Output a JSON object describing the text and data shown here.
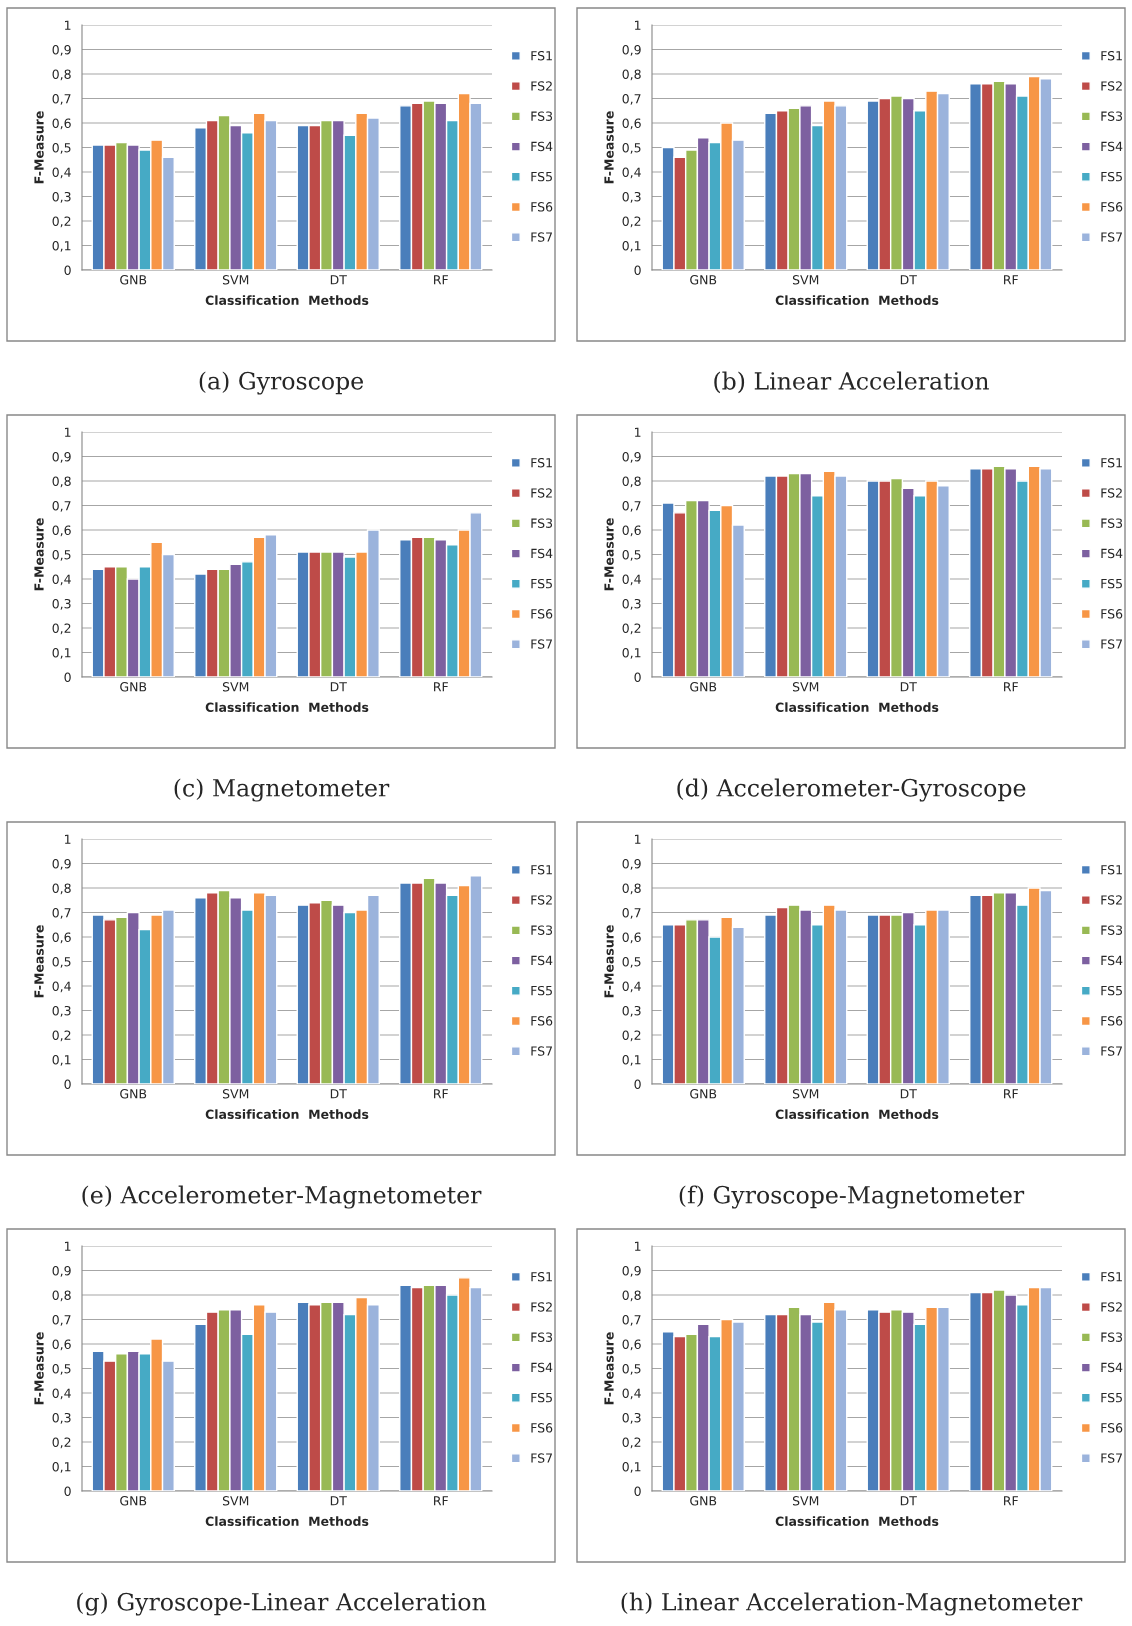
{
  "chart_data": [
    {
      "type": "bar",
      "title": "(a) Gyroscope",
      "xlabel": "Classification  Methods",
      "ylabel": "F-Measure",
      "categories": [
        "GNB",
        "SVM",
        "DT",
        "RF"
      ],
      "grid": "y",
      "legend": "right",
      "ylim": [
        0,
        1
      ],
      "yticks": [
        0,
        {
          "value": 0.1,
          "label": "0,1"
        },
        {
          "value": 0.2,
          "label": "0,2"
        },
        {
          "value": 0.3,
          "label": "0,3"
        },
        {
          "value": 0.4,
          "label": "0,4"
        },
        {
          "value": 0.5,
          "label": "0,5"
        },
        {
          "value": 0.6,
          "label": "0,6"
        },
        {
          "value": 0.7,
          "label": "0,7"
        },
        {
          "value": 0.8,
          "label": "0,8"
        },
        {
          "value": 0.9,
          "label": "0,9"
        },
        1
      ],
      "series": [
        {
          "name": "FS1",
          "color": "#4a7ebb",
          "values": [
            0.51,
            0.58,
            0.59,
            0.67
          ]
        },
        {
          "name": "FS2",
          "color": "#be4b48",
          "values": [
            0.51,
            0.61,
            0.59,
            0.68
          ]
        },
        {
          "name": "FS3",
          "color": "#98b954",
          "values": [
            0.52,
            0.63,
            0.61,
            0.69
          ]
        },
        {
          "name": "FS4",
          "color": "#7d60a0",
          "values": [
            0.51,
            0.59,
            0.61,
            0.68
          ]
        },
        {
          "name": "FS5",
          "color": "#46aac5",
          "values": [
            0.49,
            0.56,
            0.55,
            0.61
          ]
        },
        {
          "name": "FS6",
          "color": "#f79646",
          "values": [
            0.53,
            0.64,
            0.64,
            0.72
          ]
        },
        {
          "name": "FS7",
          "color": "#9bb3dc",
          "values": [
            0.46,
            0.61,
            0.62,
            0.68
          ]
        }
      ]
    },
    {
      "type": "bar",
      "title": "(b) Linear Acceleration",
      "xlabel": "Classification  Methods",
      "ylabel": "F-Measure",
      "categories": [
        "GNB",
        "SVM",
        "DT",
        "RF"
      ],
      "grid": "y",
      "legend": "right",
      "ylim": [
        0,
        1
      ],
      "yticks": [
        0,
        {
          "value": 0.1,
          "label": "0,1"
        },
        {
          "value": 0.2,
          "label": "0,2"
        },
        {
          "value": 0.3,
          "label": "0,3"
        },
        {
          "value": 0.4,
          "label": "0,4"
        },
        {
          "value": 0.5,
          "label": "0,5"
        },
        {
          "value": 0.6,
          "label": "0,6"
        },
        {
          "value": 0.7,
          "label": "0,7"
        },
        {
          "value": 0.8,
          "label": "0,8"
        },
        {
          "value": 0.9,
          "label": "0,9"
        },
        1
      ],
      "series": [
        {
          "name": "FS1",
          "color": "#4a7ebb",
          "values": [
            0.5,
            0.64,
            0.69,
            0.76
          ]
        },
        {
          "name": "FS2",
          "color": "#be4b48",
          "values": [
            0.46,
            0.65,
            0.7,
            0.76
          ]
        },
        {
          "name": "FS3",
          "color": "#98b954",
          "values": [
            0.49,
            0.66,
            0.71,
            0.77
          ]
        },
        {
          "name": "FS4",
          "color": "#7d60a0",
          "values": [
            0.54,
            0.67,
            0.7,
            0.76
          ]
        },
        {
          "name": "FS5",
          "color": "#46aac5",
          "values": [
            0.52,
            0.59,
            0.65,
            0.71
          ]
        },
        {
          "name": "FS6",
          "color": "#f79646",
          "values": [
            0.6,
            0.69,
            0.73,
            0.79
          ]
        },
        {
          "name": "FS7",
          "color": "#9bb3dc",
          "values": [
            0.53,
            0.67,
            0.72,
            0.78
          ]
        }
      ]
    },
    {
      "type": "bar",
      "title": "(c) Magnetometer",
      "xlabel": "Classification  Methods",
      "ylabel": "F-Measure",
      "categories": [
        "GNB",
        "SVM",
        "DT",
        "RF"
      ],
      "grid": "y",
      "legend": "right",
      "ylim": [
        0,
        1
      ],
      "yticks": [
        0,
        {
          "value": 0.1,
          "label": "0,1"
        },
        {
          "value": 0.2,
          "label": "0,2"
        },
        {
          "value": 0.3,
          "label": "0,3"
        },
        {
          "value": 0.4,
          "label": "0,4"
        },
        {
          "value": 0.5,
          "label": "0,5"
        },
        {
          "value": 0.6,
          "label": "0,6"
        },
        {
          "value": 0.7,
          "label": "0,7"
        },
        {
          "value": 0.8,
          "label": "0,8"
        },
        {
          "value": 0.9,
          "label": "0,9"
        },
        1
      ],
      "series": [
        {
          "name": "FS1",
          "color": "#4a7ebb",
          "values": [
            0.44,
            0.42,
            0.51,
            0.56
          ]
        },
        {
          "name": "FS2",
          "color": "#be4b48",
          "values": [
            0.45,
            0.44,
            0.51,
            0.57
          ]
        },
        {
          "name": "FS3",
          "color": "#98b954",
          "values": [
            0.45,
            0.44,
            0.51,
            0.57
          ]
        },
        {
          "name": "FS4",
          "color": "#7d60a0",
          "values": [
            0.4,
            0.46,
            0.51,
            0.56
          ]
        },
        {
          "name": "FS5",
          "color": "#46aac5",
          "values": [
            0.45,
            0.47,
            0.49,
            0.54
          ]
        },
        {
          "name": "FS6",
          "color": "#f79646",
          "values": [
            0.55,
            0.57,
            0.51,
            0.6
          ]
        },
        {
          "name": "FS7",
          "color": "#9bb3dc",
          "values": [
            0.5,
            0.58,
            0.6,
            0.67
          ]
        }
      ]
    },
    {
      "type": "bar",
      "title": "(d) Accelerometer-Gyroscope",
      "xlabel": "Classification  Methods",
      "ylabel": "F-Measure",
      "categories": [
        "GNB",
        "SVM",
        "DT",
        "RF"
      ],
      "grid": "y",
      "legend": "right",
      "ylim": [
        0,
        1
      ],
      "yticks": [
        0,
        {
          "value": 0.1,
          "label": "0,1"
        },
        {
          "value": 0.2,
          "label": "0,2"
        },
        {
          "value": 0.3,
          "label": "0,3"
        },
        {
          "value": 0.4,
          "label": "0,4"
        },
        {
          "value": 0.5,
          "label": "0,5"
        },
        {
          "value": 0.6,
          "label": "0,6"
        },
        {
          "value": 0.7,
          "label": "0,7"
        },
        {
          "value": 0.8,
          "label": "0,8"
        },
        {
          "value": 0.9,
          "label": "0,9"
        },
        1
      ],
      "series": [
        {
          "name": "FS1",
          "color": "#4a7ebb",
          "values": [
            0.71,
            0.82,
            0.8,
            0.85
          ]
        },
        {
          "name": "FS2",
          "color": "#be4b48",
          "values": [
            0.67,
            0.82,
            0.8,
            0.85
          ]
        },
        {
          "name": "FS3",
          "color": "#98b954",
          "values": [
            0.72,
            0.83,
            0.81,
            0.86
          ]
        },
        {
          "name": "FS4",
          "color": "#7d60a0",
          "values": [
            0.72,
            0.83,
            0.77,
            0.85
          ]
        },
        {
          "name": "FS5",
          "color": "#46aac5",
          "values": [
            0.68,
            0.74,
            0.74,
            0.8
          ]
        },
        {
          "name": "FS6",
          "color": "#f79646",
          "values": [
            0.7,
            0.84,
            0.8,
            0.86
          ]
        },
        {
          "name": "FS7",
          "color": "#9bb3dc",
          "values": [
            0.62,
            0.82,
            0.78,
            0.85
          ]
        }
      ]
    },
    {
      "type": "bar",
      "title": "(e) Accelerometer-Magnetometer",
      "xlabel": "Classification  Methods",
      "ylabel": "F-Measure",
      "categories": [
        "GNB",
        "SVM",
        "DT",
        "RF"
      ],
      "grid": "y",
      "legend": "right",
      "ylim": [
        0,
        1
      ],
      "yticks": [
        0,
        {
          "value": 0.1,
          "label": "0,1"
        },
        {
          "value": 0.2,
          "label": "0,2"
        },
        {
          "value": 0.3,
          "label": "0,3"
        },
        {
          "value": 0.4,
          "label": "0,4"
        },
        {
          "value": 0.5,
          "label": "0,5"
        },
        {
          "value": 0.6,
          "label": "0,6"
        },
        {
          "value": 0.7,
          "label": "0,7"
        },
        {
          "value": 0.8,
          "label": "0,8"
        },
        {
          "value": 0.9,
          "label": "0,9"
        },
        1
      ],
      "series": [
        {
          "name": "FS1",
          "color": "#4a7ebb",
          "values": [
            0.69,
            0.76,
            0.73,
            0.82
          ]
        },
        {
          "name": "FS2",
          "color": "#be4b48",
          "values": [
            0.67,
            0.78,
            0.74,
            0.82
          ]
        },
        {
          "name": "FS3",
          "color": "#98b954",
          "values": [
            0.68,
            0.79,
            0.75,
            0.84
          ]
        },
        {
          "name": "FS4",
          "color": "#7d60a0",
          "values": [
            0.7,
            0.76,
            0.73,
            0.82
          ]
        },
        {
          "name": "FS5",
          "color": "#46aac5",
          "values": [
            0.63,
            0.71,
            0.7,
            0.77
          ]
        },
        {
          "name": "FS6",
          "color": "#f79646",
          "values": [
            0.69,
            0.78,
            0.71,
            0.81
          ]
        },
        {
          "name": "FS7",
          "color": "#9bb3dc",
          "values": [
            0.71,
            0.77,
            0.77,
            0.85
          ]
        }
      ]
    },
    {
      "type": "bar",
      "title": "(f) Gyroscope-Magnetometer",
      "xlabel": "Classification  Methods",
      "ylabel": "F-Measure",
      "categories": [
        "GNB",
        "SVM",
        "DT",
        "RF"
      ],
      "grid": "y",
      "legend": "right",
      "ylim": [
        0,
        1
      ],
      "yticks": [
        0,
        {
          "value": 0.1,
          "label": "0,1"
        },
        {
          "value": 0.2,
          "label": "0,2"
        },
        {
          "value": 0.3,
          "label": "0,3"
        },
        {
          "value": 0.4,
          "label": "0,4"
        },
        {
          "value": 0.5,
          "label": "0,5"
        },
        {
          "value": 0.6,
          "label": "0,6"
        },
        {
          "value": 0.7,
          "label": "0,7"
        },
        {
          "value": 0.8,
          "label": "0,8"
        },
        {
          "value": 0.9,
          "label": "0,9"
        },
        1
      ],
      "series": [
        {
          "name": "FS1",
          "color": "#4a7ebb",
          "values": [
            0.65,
            0.69,
            0.69,
            0.77
          ]
        },
        {
          "name": "FS2",
          "color": "#be4b48",
          "values": [
            0.65,
            0.72,
            0.69,
            0.77
          ]
        },
        {
          "name": "FS3",
          "color": "#98b954",
          "values": [
            0.67,
            0.73,
            0.69,
            0.78
          ]
        },
        {
          "name": "FS4",
          "color": "#7d60a0",
          "values": [
            0.67,
            0.71,
            0.7,
            0.78
          ]
        },
        {
          "name": "FS5",
          "color": "#46aac5",
          "values": [
            0.6,
            0.65,
            0.65,
            0.73
          ]
        },
        {
          "name": "FS6",
          "color": "#f79646",
          "values": [
            0.68,
            0.73,
            0.71,
            0.8
          ]
        },
        {
          "name": "FS7",
          "color": "#9bb3dc",
          "values": [
            0.64,
            0.71,
            0.71,
            0.79
          ]
        }
      ]
    },
    {
      "type": "bar",
      "title": "(g) Gyroscope-Linear Acceleration",
      "xlabel": "Classification  Methods",
      "ylabel": "F-Measure",
      "categories": [
        "GNB",
        "SVM",
        "DT",
        "RF"
      ],
      "grid": "y",
      "legend": "right",
      "ylim": [
        0,
        1
      ],
      "yticks": [
        0,
        {
          "value": 0.1,
          "label": "0,1"
        },
        {
          "value": 0.2,
          "label": "0,2"
        },
        {
          "value": 0.3,
          "label": "0,3"
        },
        {
          "value": 0.4,
          "label": "0,4"
        },
        {
          "value": 0.5,
          "label": "0,5"
        },
        {
          "value": 0.6,
          "label": "0,6"
        },
        {
          "value": 0.7,
          "label": "0,7"
        },
        {
          "value": 0.8,
          "label": "0,8"
        },
        {
          "value": 0.9,
          "label": "0,9"
        },
        1
      ],
      "series": [
        {
          "name": "FS1",
          "color": "#4a7ebb",
          "values": [
            0.57,
            0.68,
            0.77,
            0.84
          ]
        },
        {
          "name": "FS2",
          "color": "#be4b48",
          "values": [
            0.53,
            0.73,
            0.76,
            0.83
          ]
        },
        {
          "name": "FS3",
          "color": "#98b954",
          "values": [
            0.56,
            0.74,
            0.77,
            0.84
          ]
        },
        {
          "name": "FS4",
          "color": "#7d60a0",
          "values": [
            0.57,
            0.74,
            0.77,
            0.84
          ]
        },
        {
          "name": "FS5",
          "color": "#46aac5",
          "values": [
            0.56,
            0.64,
            0.72,
            0.8
          ]
        },
        {
          "name": "FS6",
          "color": "#f79646",
          "values": [
            0.62,
            0.76,
            0.79,
            0.87
          ]
        },
        {
          "name": "FS7",
          "color": "#9bb3dc",
          "values": [
            0.53,
            0.73,
            0.76,
            0.83
          ]
        }
      ]
    },
    {
      "type": "bar",
      "title": "(h) Linear Acceleration-Magnetometer",
      "xlabel": "Classification  Methods",
      "ylabel": "F-Measure",
      "categories": [
        "GNB",
        "SVM",
        "DT",
        "RF"
      ],
      "grid": "y",
      "legend": "right",
      "ylim": [
        0,
        1
      ],
      "yticks": [
        0,
        {
          "value": 0.1,
          "label": "0,1"
        },
        {
          "value": 0.2,
          "label": "0,2"
        },
        {
          "value": 0.3,
          "label": "0,3"
        },
        {
          "value": 0.4,
          "label": "0,4"
        },
        {
          "value": 0.5,
          "label": "0,5"
        },
        {
          "value": 0.6,
          "label": "0,6"
        },
        {
          "value": 0.7,
          "label": "0,7"
        },
        {
          "value": 0.8,
          "label": "0,8"
        },
        {
          "value": 0.9,
          "label": "0,9"
        },
        1
      ],
      "series": [
        {
          "name": "FS1",
          "color": "#4a7ebb",
          "values": [
            0.65,
            0.72,
            0.74,
            0.81
          ]
        },
        {
          "name": "FS2",
          "color": "#be4b48",
          "values": [
            0.63,
            0.72,
            0.73,
            0.81
          ]
        },
        {
          "name": "FS3",
          "color": "#98b954",
          "values": [
            0.64,
            0.75,
            0.74,
            0.82
          ]
        },
        {
          "name": "FS4",
          "color": "#7d60a0",
          "values": [
            0.68,
            0.72,
            0.73,
            0.8
          ]
        },
        {
          "name": "FS5",
          "color": "#46aac5",
          "values": [
            0.63,
            0.69,
            0.68,
            0.76
          ]
        },
        {
          "name": "FS6",
          "color": "#f79646",
          "values": [
            0.7,
            0.77,
            0.75,
            0.83
          ]
        },
        {
          "name": "FS7",
          "color": "#9bb3dc",
          "values": [
            0.69,
            0.74,
            0.75,
            0.83
          ]
        }
      ]
    }
  ]
}
